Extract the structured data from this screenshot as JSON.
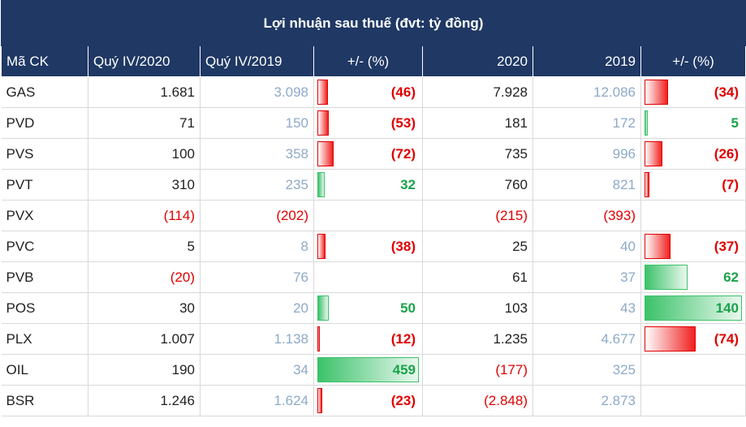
{
  "title": "Lợi nhuận sau thuế (đvt: tỷ đồng)",
  "headers": [
    "Mã CK",
    "Quý IV/2020",
    "Quý IV/2019",
    "+/- (%)",
    "2020",
    "2019",
    "+/- (%)"
  ],
  "colors": {
    "header_bg": "#1f3864",
    "negative": "#e00000",
    "positive": "#1aa34a",
    "prior_year_text": "#8ea9c8"
  },
  "rows": [
    {
      "code": "GAS",
      "q4_2020": "1.681",
      "q4_2019": "3.098",
      "q_change": "(46)",
      "q_change_value": -46,
      "y2020": "7.928",
      "y2019": "12.086",
      "y_change": "(34)",
      "y_change_value": -34
    },
    {
      "code": "PVD",
      "q4_2020": "71",
      "q4_2019": "150",
      "q_change": "(53)",
      "q_change_value": -53,
      "y2020": "181",
      "y2019": "172",
      "y_change": "5",
      "y_change_value": 5
    },
    {
      "code": "PVS",
      "q4_2020": "100",
      "q4_2019": "358",
      "q_change": "(72)",
      "q_change_value": -72,
      "y2020": "735",
      "y2019": "996",
      "y_change": "(26)",
      "y_change_value": -26
    },
    {
      "code": "PVT",
      "q4_2020": "310",
      "q4_2019": "235",
      "q_change": "32",
      "q_change_value": 32,
      "y2020": "760",
      "y2019": "821",
      "y_change": "(7)",
      "y_change_value": -7
    },
    {
      "code": "PVX",
      "q4_2020": "(114)",
      "q4_2019": "(202)",
      "q_change": "",
      "q_change_value": null,
      "y2020": "(215)",
      "y2019": "(393)",
      "y_change": "",
      "y_change_value": null
    },
    {
      "code": "PVC",
      "q4_2020": "5",
      "q4_2019": "8",
      "q_change": "(38)",
      "q_change_value": -38,
      "y2020": "25",
      "y2019": "40",
      "y_change": "(37)",
      "y_change_value": -37
    },
    {
      "code": "PVB",
      "q4_2020": "(20)",
      "q4_2019": "76",
      "q_change": "",
      "q_change_value": null,
      "y2020": "61",
      "y2019": "37",
      "y_change": "62",
      "y_change_value": 62
    },
    {
      "code": "POS",
      "q4_2020": "30",
      "q4_2019": "20",
      "q_change": "50",
      "q_change_value": 50,
      "y2020": "103",
      "y2019": "43",
      "y_change": "140",
      "y_change_value": 140
    },
    {
      "code": "PLX",
      "q4_2020": "1.007",
      "q4_2019": "1.138",
      "q_change": "(12)",
      "q_change_value": -12,
      "y2020": "1.235",
      "y2019": "4.677",
      "y_change": "(74)",
      "y_change_value": -74
    },
    {
      "code": "OIL",
      "q4_2020": "190",
      "q4_2019": "34",
      "q_change": "459",
      "q_change_value": 459,
      "y2020": "(177)",
      "y2019": "325",
      "y_change": "",
      "y_change_value": null
    },
    {
      "code": "BSR",
      "q4_2020": "1.246",
      "q4_2019": "1.624",
      "q_change": "(23)",
      "q_change_value": -23,
      "y2020": "(2.848)",
      "y2019": "2.873",
      "y_change": "",
      "y_change_value": null
    }
  ]
}
